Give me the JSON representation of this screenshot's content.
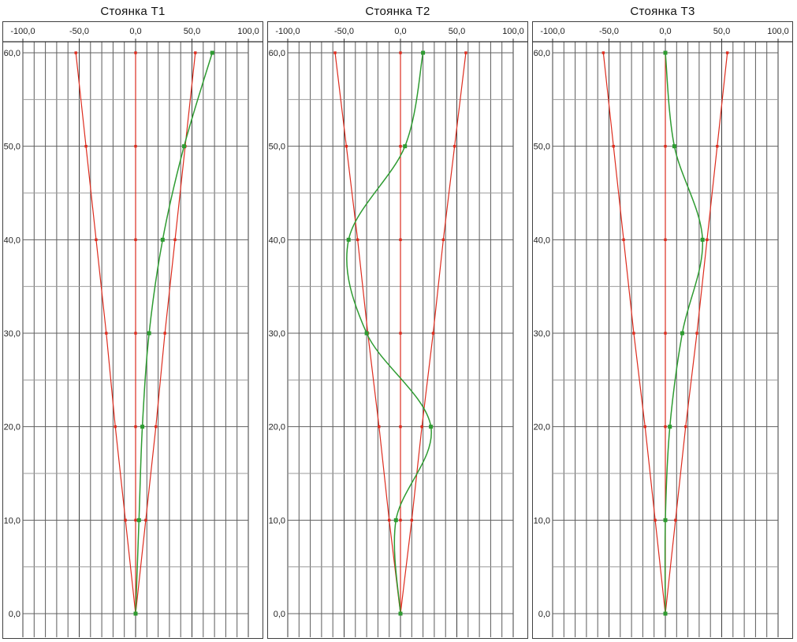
{
  "colors": {
    "tolerance_line": "#dd2c1e",
    "measured_line": "#2e9b31",
    "grid_vertical": "#5b5b5b",
    "grid_horizontal": "#9b9b9b",
    "panel_border": "#3f3f3f",
    "label_text": "#1f1f1f"
  },
  "chart_data": [
    {
      "type": "line",
      "title": "Стоянка Т1",
      "xlim": [
        -100,
        100
      ],
      "ylim": [
        0,
        60
      ],
      "x_ticks": [
        -100,
        -50,
        0,
        50,
        100
      ],
      "x_tick_labels": [
        "-100,0",
        "-50,0",
        "0,0",
        "50,0",
        "100,0"
      ],
      "y_ticks": [
        60,
        50,
        40,
        30,
        20,
        10,
        0
      ],
      "y_tick_labels": [
        "60,0",
        "50,0",
        "40,0",
        "30,0",
        "20,0",
        "10,0",
        "0,0"
      ],
      "grid": {
        "on": true,
        "x_step": 10,
        "y_step": 5
      },
      "x_axis_position": "top",
      "legend": "none",
      "y_values": [
        0,
        10,
        20,
        30,
        40,
        50,
        60
      ],
      "series": [
        {
          "name": "lower-tolerance",
          "color": "#dd2c1e",
          "style": "straight",
          "marker": "square-small",
          "x_values": [
            0,
            -9,
            -18,
            -26,
            -35,
            -44,
            -53
          ]
        },
        {
          "name": "center-zero",
          "color": "#dd2c1e",
          "style": "straight",
          "marker": "square-small",
          "x_values": [
            0,
            0,
            0,
            0,
            0,
            0,
            0
          ]
        },
        {
          "name": "upper-tolerance",
          "color": "#dd2c1e",
          "style": "straight",
          "marker": "square-small",
          "x_values": [
            0,
            9,
            18,
            26,
            35,
            44,
            53
          ]
        },
        {
          "name": "measured-drift",
          "color": "#2e9b31",
          "style": "smooth",
          "marker": "square",
          "x_values": [
            0,
            3,
            6,
            12,
            24,
            43,
            68
          ]
        }
      ]
    },
    {
      "type": "line",
      "title": "Стоянка Т2",
      "xlim": [
        -100,
        100
      ],
      "ylim": [
        0,
        60
      ],
      "x_ticks": [
        -100,
        -50,
        0,
        50,
        100
      ],
      "x_tick_labels": [
        "-100,0",
        "-50,0",
        "0,0",
        "50,0",
        "100,0"
      ],
      "y_ticks": [
        60,
        50,
        40,
        30,
        20,
        10,
        0
      ],
      "y_tick_labels": [
        "60,0",
        "50,0",
        "40,0",
        "30,0",
        "20,0",
        "10,0",
        "0,0"
      ],
      "grid": {
        "on": true,
        "x_step": 10,
        "y_step": 5
      },
      "x_axis_position": "top",
      "legend": "none",
      "y_values": [
        0,
        10,
        20,
        30,
        40,
        50,
        60
      ],
      "series": [
        {
          "name": "lower-tolerance",
          "color": "#dd2c1e",
          "style": "straight",
          "marker": "square-small",
          "x_values": [
            0,
            -10,
            -19,
            -29,
            -38,
            -48,
            -58
          ]
        },
        {
          "name": "center-zero",
          "color": "#dd2c1e",
          "style": "straight",
          "marker": "square-small",
          "x_values": [
            0,
            0,
            0,
            0,
            0,
            0,
            0
          ]
        },
        {
          "name": "upper-tolerance",
          "color": "#dd2c1e",
          "style": "straight",
          "marker": "square-small",
          "x_values": [
            0,
            10,
            19,
            29,
            38,
            48,
            58
          ]
        },
        {
          "name": "measured-drift",
          "color": "#2e9b31",
          "style": "smooth",
          "marker": "square",
          "x_values": [
            0,
            -4,
            27,
            -30,
            -46,
            4,
            20
          ]
        }
      ]
    },
    {
      "type": "line",
      "title": "Стоянка Т3",
      "xlim": [
        -100,
        100
      ],
      "ylim": [
        0,
        60
      ],
      "x_ticks": [
        -100,
        -50,
        0,
        50,
        100
      ],
      "x_tick_labels": [
        "-100,0",
        "-50,0",
        "0,0",
        "50,0",
        "100,0"
      ],
      "y_ticks": [
        60,
        50,
        40,
        30,
        20,
        10,
        0
      ],
      "y_tick_labels": [
        "60,0",
        "50,0",
        "40,0",
        "30,0",
        "20,0",
        "10,0",
        "0,0"
      ],
      "grid": {
        "on": true,
        "x_step": 10,
        "y_step": 5
      },
      "x_axis_position": "top",
      "legend": "none",
      "y_values": [
        0,
        10,
        20,
        30,
        40,
        50,
        60
      ],
      "series": [
        {
          "name": "lower-tolerance",
          "color": "#dd2c1e",
          "style": "straight",
          "marker": "square-small",
          "x_values": [
            0,
            -9,
            -18,
            -28,
            -37,
            -46,
            -55
          ]
        },
        {
          "name": "center-zero",
          "color": "#dd2c1e",
          "style": "straight",
          "marker": "square-small",
          "x_values": [
            0,
            0,
            0,
            0,
            0,
            0,
            0
          ]
        },
        {
          "name": "upper-tolerance",
          "color": "#dd2c1e",
          "style": "straight",
          "marker": "square-small",
          "x_values": [
            0,
            9,
            18,
            28,
            37,
            46,
            55
          ]
        },
        {
          "name": "measured-drift",
          "color": "#2e9b31",
          "style": "smooth",
          "marker": "square",
          "x_values": [
            0,
            0,
            4,
            15,
            33,
            8,
            0
          ]
        }
      ]
    }
  ]
}
